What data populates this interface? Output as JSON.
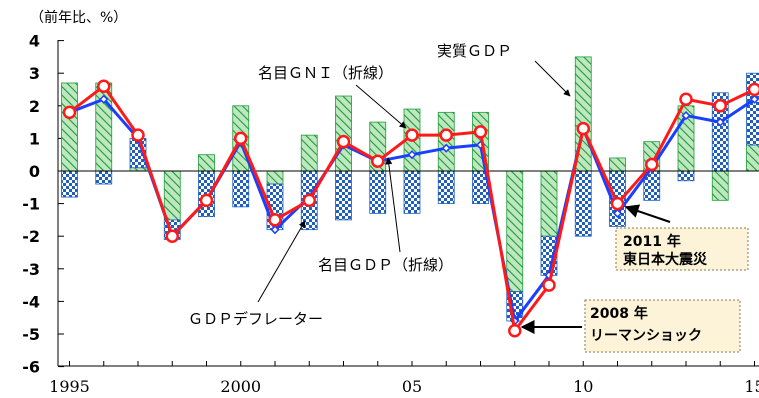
{
  "chart_data": {
    "type": "bar",
    "unit_label": "（前年比、%）",
    "x": [
      1995,
      1996,
      1997,
      1998,
      1999,
      2000,
      2001,
      2002,
      2003,
      2004,
      2005,
      2006,
      2007,
      2008,
      2009,
      2010,
      2011,
      2012,
      2013,
      2014,
      2015
    ],
    "x_tick_labels": [
      "1995",
      "2000",
      "05",
      "10",
      "15"
    ],
    "x_tick_years": [
      1995,
      2000,
      2005,
      2010,
      2015
    ],
    "y_ticks": [
      "4",
      "3",
      "2",
      "1",
      "0",
      "-1",
      "-2",
      "-3",
      "-4",
      "-5",
      "-6"
    ],
    "ylim": [
      -6,
      4
    ],
    "series": [
      {
        "name": "実質ＧＤＰ",
        "kind": "bar",
        "values": [
          2.7,
          2.7,
          0.1,
          -1.5,
          0.5,
          2.0,
          -0.4,
          1.1,
          2.3,
          1.5,
          1.9,
          1.8,
          1.8,
          -3.7,
          -2.0,
          3.5,
          0.4,
          0.9,
          2.0,
          -0.9,
          0.8
        ]
      },
      {
        "name": "ＧＤＰデフレーター",
        "kind": "bar",
        "values": [
          -0.8,
          -0.4,
          0.9,
          -0.6,
          -1.4,
          -1.1,
          -1.4,
          -1.8,
          -1.5,
          -1.3,
          -1.3,
          -1.0,
          -1.0,
          -0.9,
          -1.2,
          -2.0,
          -1.7,
          -0.9,
          -0.3,
          2.4,
          2.2
        ]
      },
      {
        "name": "名目ＧＤＰ（折線）",
        "kind": "line",
        "color": "#1a3fff",
        "values": [
          1.8,
          2.2,
          1.0,
          -2.0,
          -0.9,
          0.9,
          -1.8,
          -0.8,
          0.8,
          0.3,
          0.5,
          0.7,
          0.8,
          -4.6,
          -3.2,
          1.3,
          -1.3,
          0.1,
          1.7,
          1.5,
          2.2
        ]
      },
      {
        "name": "名目ＧＮＩ（折線）",
        "kind": "line",
        "color": "#ff1a1a",
        "values": [
          1.8,
          2.6,
          1.1,
          -2.0,
          -0.9,
          1.0,
          -1.5,
          -0.9,
          0.9,
          0.3,
          1.1,
          1.1,
          1.2,
          -4.9,
          -3.5,
          1.3,
          -1.0,
          0.2,
          2.2,
          2.0,
          2.5
        ]
      }
    ],
    "annotations": [
      {
        "text": "名目ＧＮＩ（折線）"
      },
      {
        "text": "実質ＧＤＰ"
      },
      {
        "text": "名目ＧＤＰ（折線）"
      },
      {
        "text": "ＧＤＰデフレーター"
      }
    ],
    "callouts": [
      {
        "line1": "2011 年",
        "line2": "東日本大震災"
      },
      {
        "line1": "2008 年",
        "line2": "リーマンショック"
      }
    ],
    "colors": {
      "real_gdp": "#1f9b3a",
      "deflator": "#1f5fbf",
      "callout_bg": "#fdf3d8"
    }
  }
}
